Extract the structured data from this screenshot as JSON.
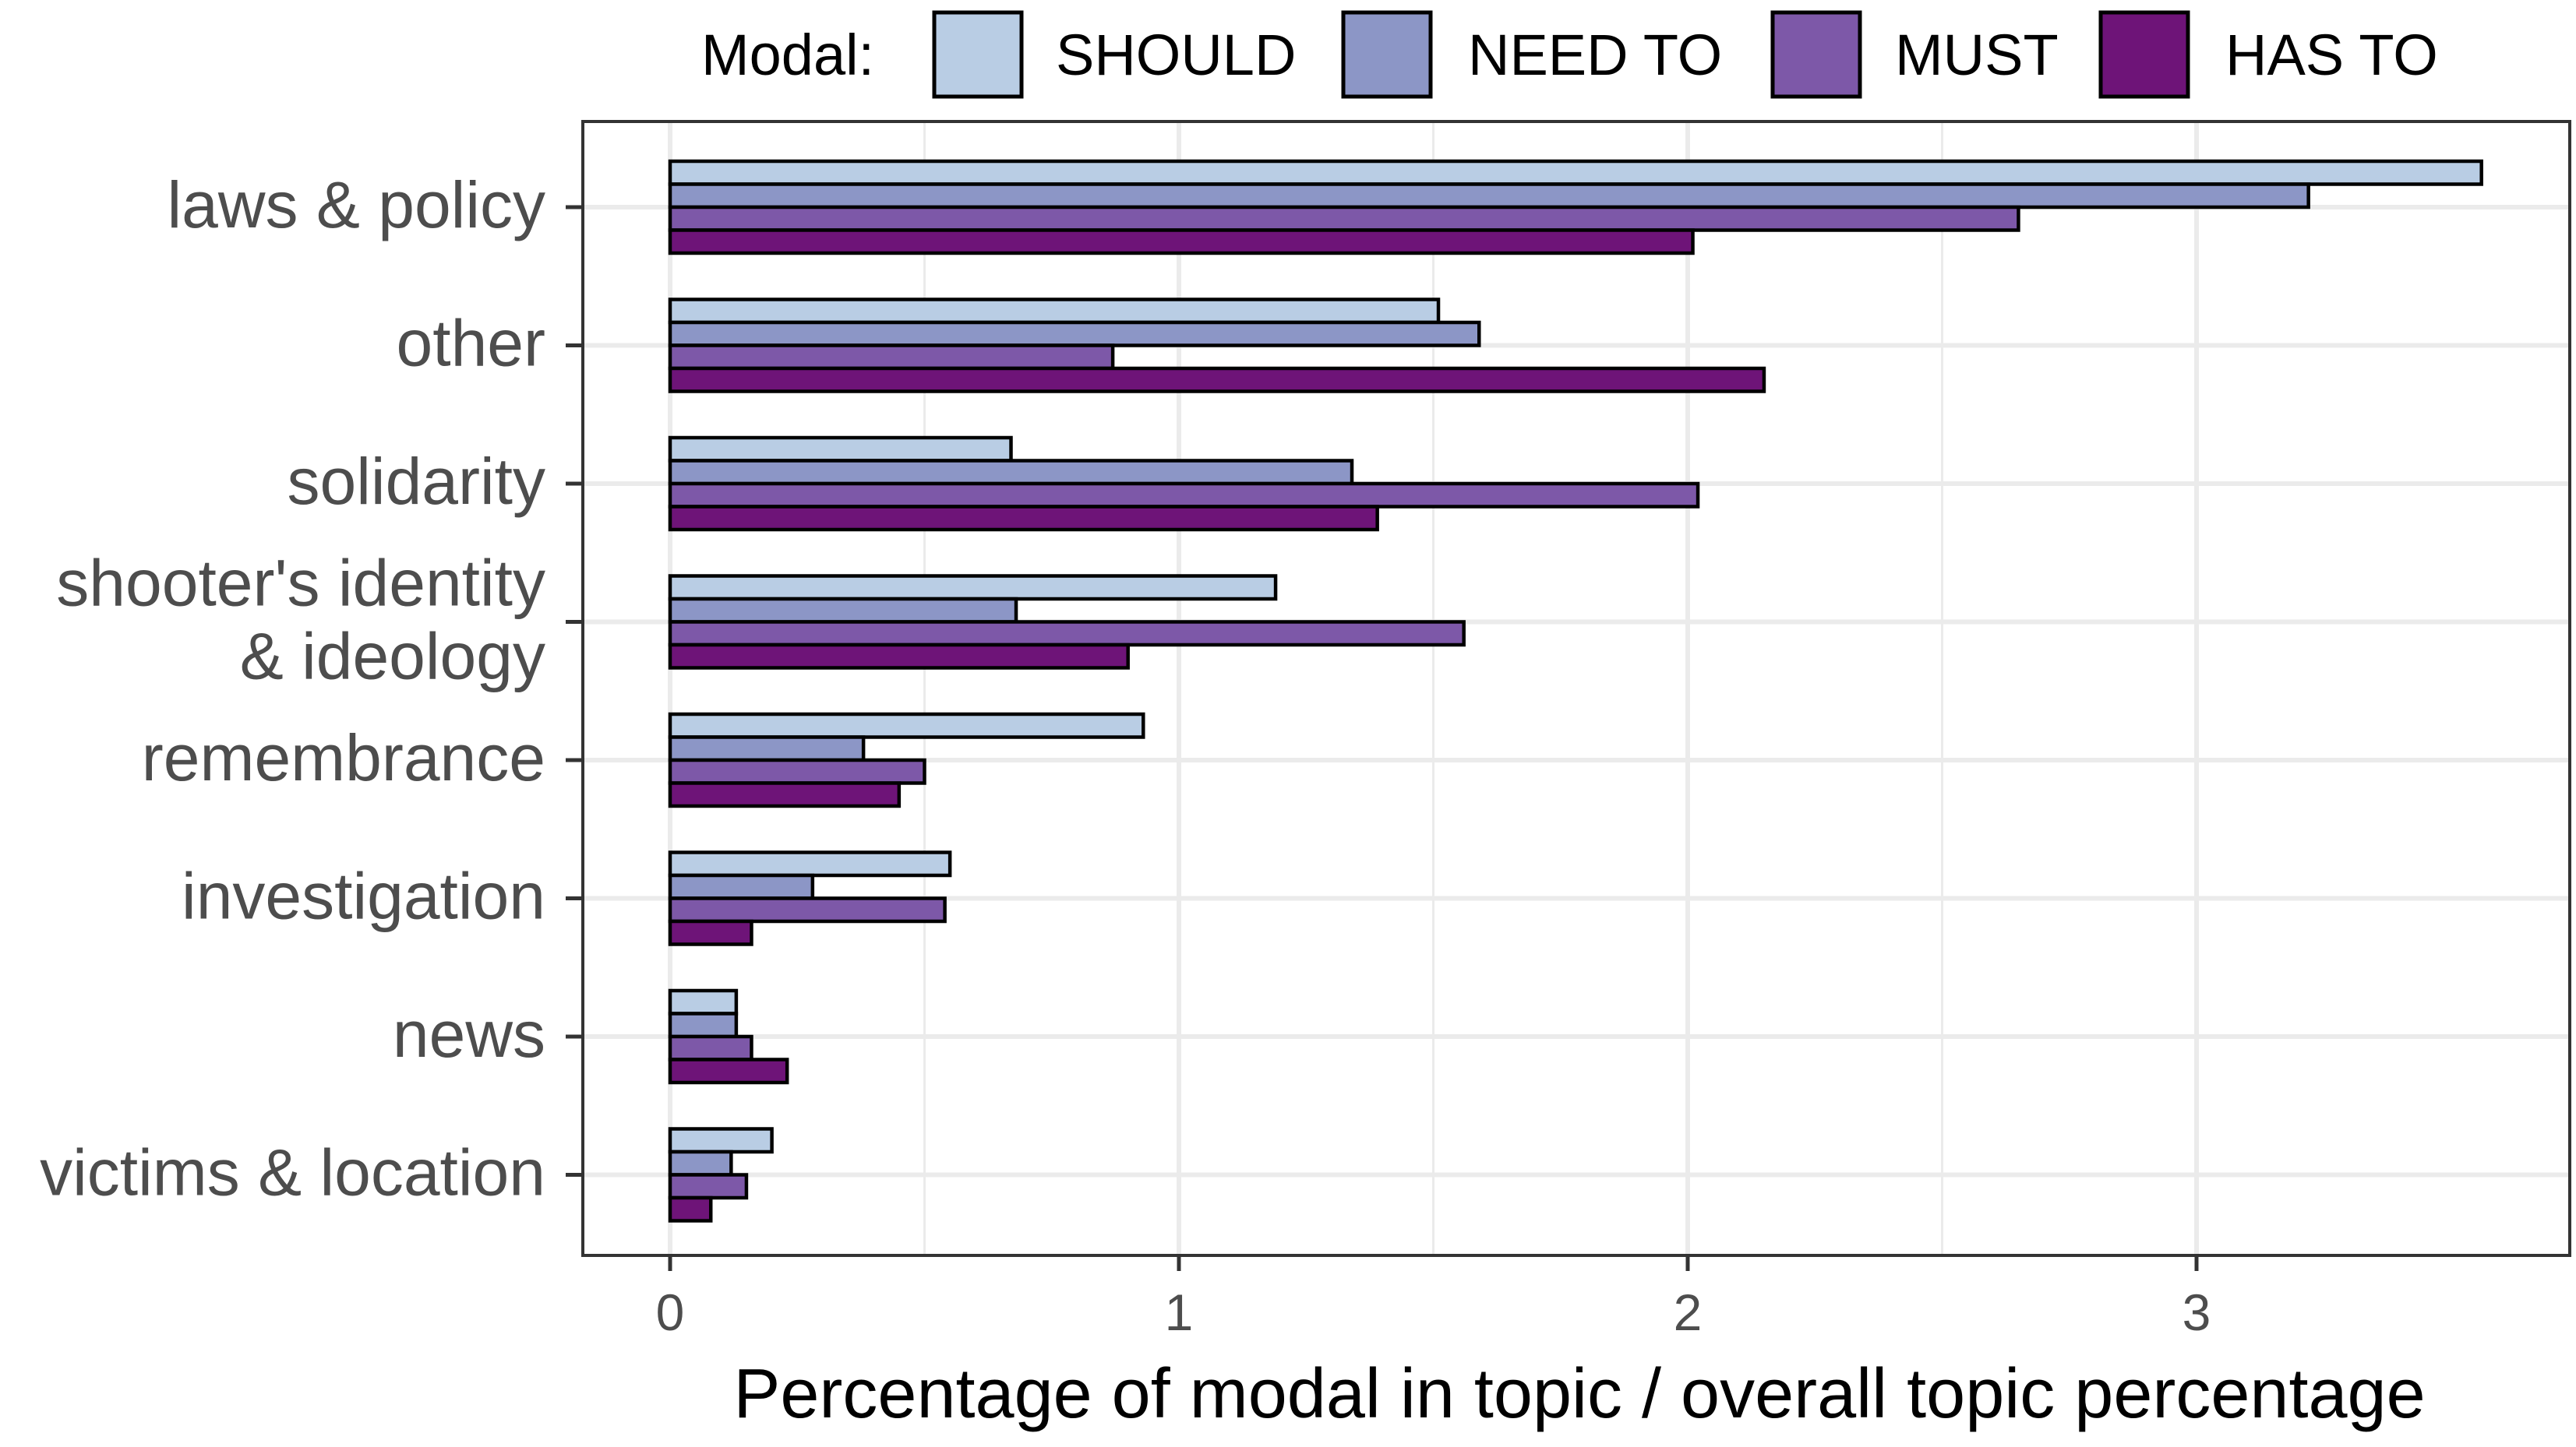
{
  "chart_data": {
    "type": "bar",
    "orientation": "horizontal",
    "title": "",
    "xlabel": "Percentage of modal in topic / overall topic percentage",
    "ylabel": "",
    "xlim": [
      -0.17,
      3.72
    ],
    "xticks": [
      "0",
      "1",
      "2",
      "3"
    ],
    "grid": true,
    "legend": {
      "title": "Modal:",
      "position": "top"
    },
    "categories": [
      [
        "laws & policy"
      ],
      [
        "other"
      ],
      [
        "solidarity"
      ],
      [
        "shooter's identity",
        "& ideology"
      ],
      [
        "remembrance"
      ],
      [
        "investigation"
      ],
      [
        "news"
      ],
      [
        "victims & location"
      ]
    ],
    "series": [
      {
        "name": "SHOULD",
        "color": "#b9cde4",
        "values": [
          3.56,
          1.51,
          0.67,
          1.19,
          0.93,
          0.55,
          0.13,
          0.2
        ]
      },
      {
        "name": "NEED TO",
        "color": "#8c96c6",
        "values": [
          3.22,
          1.59,
          1.34,
          0.68,
          0.38,
          0.28,
          0.13,
          0.12
        ]
      },
      {
        "name": "MUST",
        "color": "#7d58a8",
        "values": [
          2.65,
          0.87,
          2.02,
          1.56,
          0.5,
          0.54,
          0.16,
          0.15
        ]
      },
      {
        "name": "HAS TO",
        "color": "#6e1478",
        "values": [
          2.01,
          2.15,
          1.39,
          0.9,
          0.45,
          0.16,
          0.23,
          0.08
        ]
      }
    ]
  }
}
